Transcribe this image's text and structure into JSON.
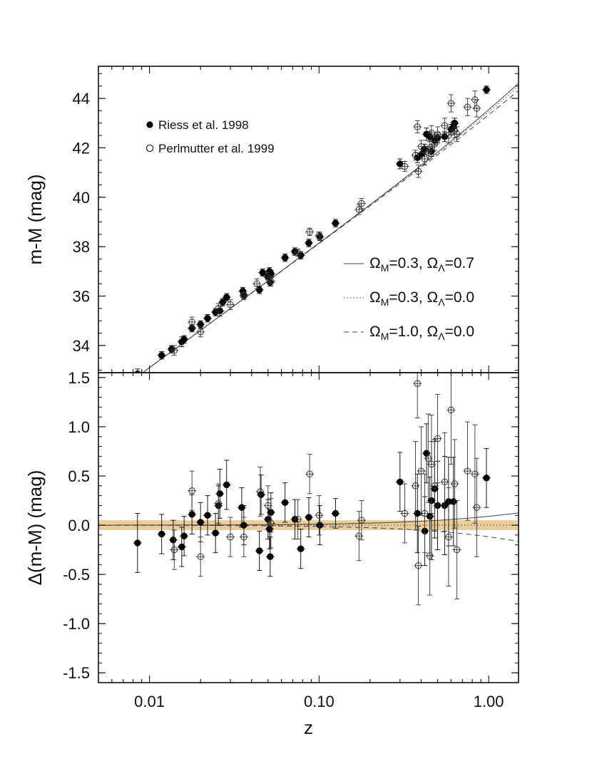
{
  "chart_data": [
    {
      "panel": "top",
      "type": "scatter",
      "ylabel": "m-M (mag)",
      "xlabel": "",
      "xscale": "log",
      "xlim": [
        0.005,
        1.5
      ],
      "ylim": [
        32.9,
        45.3
      ],
      "yticks": [
        34,
        36,
        38,
        40,
        42,
        44
      ],
      "ytick_labels": [
        "34",
        "36",
        "38",
        "40",
        "42",
        "44"
      ],
      "legend": [
        {
          "marker": "filled-circle",
          "label": "Riess et al. 1998"
        },
        {
          "marker": "open-circle",
          "label": "Perlmutter et al. 1999"
        }
      ],
      "models": [
        {
          "style": "solid",
          "label_main": "Ω",
          "sub1": "M",
          "mid": "=0.3, Ω",
          "sub2": "Λ",
          "end": "=0.7"
        },
        {
          "style": "dotted",
          "label_main": "Ω",
          "sub1": "M",
          "mid": "=0.3, Ω",
          "sub2": "Λ",
          "end": "=0.0"
        },
        {
          "style": "dashed",
          "label_main": "Ω",
          "sub1": "M",
          "mid": "=1.0, Ω",
          "sub2": "Λ",
          "end": "=0.0"
        }
      ],
      "series": [
        {
          "name": "Riess et al. 1998",
          "marker": "filled",
          "points": [
            [
              0.0085,
              32.85,
              0.2
            ],
            [
              0.0118,
              33.6,
              0.15
            ],
            [
              0.0135,
              33.85,
              0.15
            ],
            [
              0.0155,
              34.15,
              0.2
            ],
            [
              0.016,
              34.25,
              0.15
            ],
            [
              0.0178,
              34.7,
              0.15
            ],
            [
              0.02,
              34.85,
              0.15
            ],
            [
              0.022,
              35.1,
              0.15
            ],
            [
              0.0245,
              35.35,
              0.15
            ],
            [
              0.026,
              35.4,
              0.2
            ],
            [
              0.027,
              35.75,
              0.15
            ],
            [
              0.0285,
              35.95,
              0.15
            ],
            [
              0.0355,
              36.2,
              0.15
            ],
            [
              0.036,
              36.05,
              0.15
            ],
            [
              0.0445,
              36.25,
              0.15
            ],
            [
              0.0465,
              36.95,
              0.15
            ],
            [
              0.05,
              36.8,
              0.15
            ],
            [
              0.051,
              37.0,
              0.15
            ],
            [
              0.0515,
              36.55,
              0.15
            ],
            [
              0.052,
              36.9,
              0.15
            ],
            [
              0.063,
              37.55,
              0.15
            ],
            [
              0.072,
              37.8,
              0.15
            ],
            [
              0.078,
              37.65,
              0.15
            ],
            [
              0.087,
              38.15,
              0.15
            ],
            [
              0.101,
              38.4,
              0.15
            ],
            [
              0.125,
              38.95,
              0.15
            ],
            [
              0.3,
              41.35,
              0.2
            ],
            [
              0.38,
              41.6,
              0.2
            ],
            [
              0.405,
              41.75,
              0.2
            ],
            [
              0.42,
              41.95,
              0.2
            ],
            [
              0.43,
              42.55,
              0.25
            ],
            [
              0.45,
              42.45,
              0.2
            ],
            [
              0.46,
              41.85,
              0.2
            ],
            [
              0.48,
              42.3,
              0.2
            ],
            [
              0.5,
              42.4,
              0.2
            ],
            [
              0.55,
              42.45,
              0.2
            ],
            [
              0.6,
              42.75,
              0.2
            ],
            [
              0.62,
              42.85,
              0.2
            ],
            [
              0.63,
              43.0,
              0.2
            ],
            [
              0.97,
              44.35,
              0.15
            ]
          ]
        },
        {
          "name": "Perlmutter et al. 1999",
          "marker": "open",
          "points": [
            [
              0.014,
              33.8,
              0.2
            ],
            [
              0.0178,
              34.95,
              0.2
            ],
            [
              0.02,
              34.55,
              0.2
            ],
            [
              0.0255,
              35.5,
              0.2
            ],
            [
              0.03,
              35.65,
              0.2
            ],
            [
              0.036,
              36.0,
              0.15
            ],
            [
              0.043,
              36.5,
              0.2
            ],
            [
              0.05,
              36.75,
              0.2
            ],
            [
              0.052,
              36.6,
              0.2
            ],
            [
              0.075,
              37.75,
              0.15
            ],
            [
              0.088,
              38.6,
              0.15
            ],
            [
              0.1,
              38.45,
              0.15
            ],
            [
              0.172,
              39.5,
              0.2
            ],
            [
              0.178,
              39.75,
              0.2
            ],
            [
              0.32,
              41.25,
              0.2
            ],
            [
              0.37,
              41.7,
              0.2
            ],
            [
              0.38,
              42.85,
              0.25
            ],
            [
              0.385,
              41.05,
              0.25
            ],
            [
              0.4,
              42.05,
              0.25
            ],
            [
              0.42,
              41.55,
              0.25
            ],
            [
              0.44,
              41.8,
              0.25
            ],
            [
              0.45,
              42.0,
              0.25
            ],
            [
              0.46,
              42.6,
              0.3
            ],
            [
              0.48,
              42.15,
              0.25
            ],
            [
              0.5,
              42.55,
              0.3
            ],
            [
              0.55,
              42.9,
              0.3
            ],
            [
              0.58,
              42.5,
              0.3
            ],
            [
              0.6,
              43.8,
              0.35
            ],
            [
              0.63,
              42.7,
              0.3
            ],
            [
              0.65,
              42.55,
              0.3
            ],
            [
              0.75,
              43.65,
              0.35
            ],
            [
              0.83,
              43.95,
              0.35
            ],
            [
              0.85,
              43.6,
              0.35
            ]
          ]
        }
      ]
    },
    {
      "panel": "bottom",
      "type": "scatter",
      "ylabel": "Δ(m-M) (mag)",
      "xlabel": "z",
      "xscale": "log",
      "xlim": [
        0.005,
        1.5
      ],
      "ylim": [
        -1.6,
        1.55
      ],
      "yticks": [
        -1.5,
        -1.0,
        -0.5,
        0.0,
        0.5,
        1.0,
        1.5
      ],
      "ytick_labels": [
        "-1.5",
        "-1.0",
        "-0.5",
        "0.0",
        "0.5",
        "1.0",
        "1.5"
      ],
      "xticks": [
        0.01,
        0.1,
        1.0
      ],
      "xtick_labels": [
        "0.01",
        "0.10",
        "1.00"
      ],
      "band": {
        "lower": -0.05,
        "upper": 0.05,
        "color": "#e8c489"
      },
      "series": [
        {
          "name": "Riess et al. 1998",
          "marker": "filled",
          "points": [
            [
              0.0085,
              -0.18,
              0.3
            ],
            [
              0.0118,
              -0.09,
              0.2
            ],
            [
              0.0138,
              -0.15,
              0.2
            ],
            [
              0.0155,
              -0.22,
              0.2
            ],
            [
              0.016,
              -0.11,
              0.2
            ],
            [
              0.0178,
              0.11,
              0.2
            ],
            [
              0.02,
              0.03,
              0.2
            ],
            [
              0.022,
              0.1,
              0.2
            ],
            [
              0.0245,
              -0.08,
              0.2
            ],
            [
              0.0255,
              0.2,
              0.2
            ],
            [
              0.026,
              0.32,
              0.25
            ],
            [
              0.0285,
              0.41,
              0.25
            ],
            [
              0.035,
              0.18,
              0.2
            ],
            [
              0.036,
              0.0,
              0.2
            ],
            [
              0.0445,
              -0.26,
              0.2
            ],
            [
              0.0455,
              0.31,
              0.2
            ],
            [
              0.05,
              0.06,
              0.2
            ],
            [
              0.051,
              -0.04,
              0.2
            ],
            [
              0.0515,
              -0.32,
              0.2
            ],
            [
              0.052,
              0.13,
              0.2
            ],
            [
              0.063,
              0.23,
              0.2
            ],
            [
              0.072,
              0.06,
              0.2
            ],
            [
              0.078,
              -0.24,
              0.2
            ],
            [
              0.087,
              0.08,
              0.2
            ],
            [
              0.101,
              0.0,
              0.2
            ],
            [
              0.125,
              0.12,
              0.15
            ],
            [
              0.3,
              0.44,
              0.3
            ],
            [
              0.38,
              0.12,
              0.4
            ],
            [
              0.42,
              -0.06,
              0.35
            ],
            [
              0.43,
              0.73,
              0.3
            ],
            [
              0.45,
              0.09,
              0.4
            ],
            [
              0.46,
              0.25,
              0.6
            ],
            [
              0.48,
              0.37,
              0.5
            ],
            [
              0.5,
              0.2,
              0.45
            ],
            [
              0.55,
              0.2,
              0.5
            ],
            [
              0.58,
              0.24,
              0.45
            ],
            [
              0.62,
              0.24,
              0.45
            ],
            [
              0.97,
              0.48,
              0.3
            ]
          ]
        },
        {
          "name": "Perlmutter et al. 1999",
          "marker": "open",
          "points": [
            [
              0.014,
              -0.25,
              0.2
            ],
            [
              0.0178,
              0.35,
              0.2
            ],
            [
              0.02,
              -0.32,
              0.2
            ],
            [
              0.0255,
              0.22,
              0.2
            ],
            [
              0.03,
              -0.12,
              0.2
            ],
            [
              0.036,
              -0.12,
              0.2
            ],
            [
              0.045,
              0.34,
              0.25
            ],
            [
              0.05,
              0.2,
              0.2
            ],
            [
              0.052,
              0.02,
              0.25
            ],
            [
              0.075,
              0.06,
              0.2
            ],
            [
              0.088,
              0.52,
              0.2
            ],
            [
              0.1,
              0.1,
              0.2
            ],
            [
              0.172,
              -0.11,
              0.25
            ],
            [
              0.178,
              0.05,
              0.2
            ],
            [
              0.32,
              0.12,
              0.3
            ],
            [
              0.37,
              0.4,
              0.45
            ],
            [
              0.38,
              1.44,
              0.35
            ],
            [
              0.385,
              -0.41,
              0.4
            ],
            [
              0.4,
              0.55,
              0.45
            ],
            [
              0.42,
              0.12,
              0.4
            ],
            [
              0.44,
              0.68,
              0.45
            ],
            [
              0.45,
              -0.31,
              0.4
            ],
            [
              0.46,
              0.62,
              0.5
            ],
            [
              0.48,
              0.4,
              0.45
            ],
            [
              0.5,
              0.88,
              0.45
            ],
            [
              0.55,
              0.44,
              0.5
            ],
            [
              0.58,
              -0.12,
              0.5
            ],
            [
              0.6,
              1.17,
              0.55
            ],
            [
              0.63,
              0.42,
              0.45
            ],
            [
              0.65,
              -0.25,
              0.5
            ],
            [
              0.75,
              0.55,
              0.5
            ],
            [
              0.83,
              0.52,
              0.5
            ],
            [
              0.85,
              0.18,
              0.5
            ]
          ]
        }
      ]
    }
  ]
}
